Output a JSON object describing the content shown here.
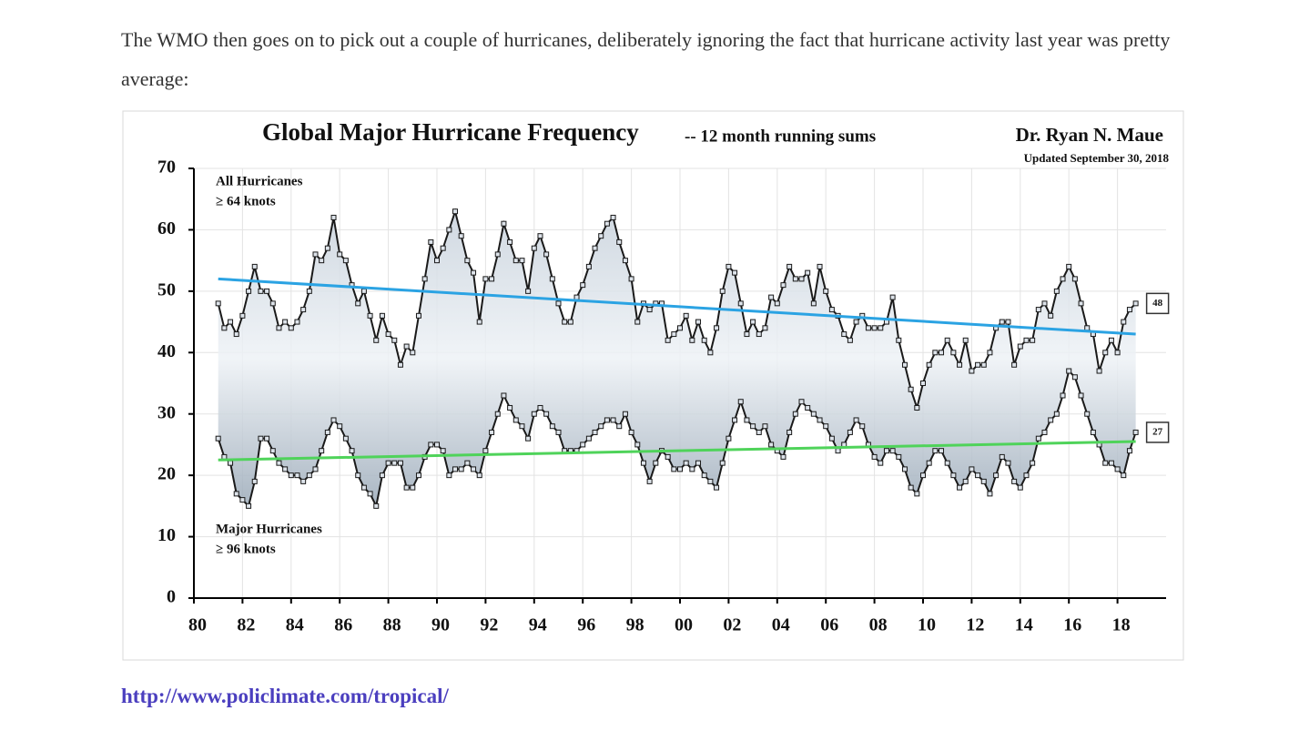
{
  "intro": "The WMO then goes on to pick out a couple of hurricanes, deliberately ignoring the fact that hurricane activity last year was pretty average:",
  "link": "http://www.policlimate.com/tropical/",
  "chart_data": {
    "type": "line",
    "title": "Global Major Hurricane Frequency",
    "subtitle": "-- 12 month running sums",
    "author": "Dr. Ryan N. Maue",
    "updated": "Updated September 30, 2018",
    "annotations": [
      "All Hurricanes",
      "≥ 64 knots",
      "Major Hurricanes",
      "≥ 96 knots"
    ],
    "xlim": [
      1980,
      2020
    ],
    "xticks": [
      {
        "value": 1980,
        "label": "80"
      },
      {
        "value": 1982,
        "label": "82"
      },
      {
        "value": 1984,
        "label": "84"
      },
      {
        "value": 1986,
        "label": "86"
      },
      {
        "value": 1988,
        "label": "88"
      },
      {
        "value": 1990,
        "label": "90"
      },
      {
        "value": 1992,
        "label": "92"
      },
      {
        "value": 1994,
        "label": "94"
      },
      {
        "value": 1996,
        "label": "96"
      },
      {
        "value": 1998,
        "label": "98"
      },
      {
        "value": 2000,
        "label": "00"
      },
      {
        "value": 2002,
        "label": "02"
      },
      {
        "value": 2004,
        "label": "04"
      },
      {
        "value": 2006,
        "label": "06"
      },
      {
        "value": 2008,
        "label": "08"
      },
      {
        "value": 2010,
        "label": "10"
      },
      {
        "value": 2012,
        "label": "12"
      },
      {
        "value": 2014,
        "label": "14"
      },
      {
        "value": 2016,
        "label": "16"
      },
      {
        "value": 2018,
        "label": "18"
      }
    ],
    "ylim": [
      0,
      70
    ],
    "yticks": [
      0,
      10,
      20,
      30,
      40,
      50,
      60,
      70
    ],
    "grid": true,
    "x": [
      1981,
      1981.25,
      1981.5,
      1981.75,
      1982,
      1982.25,
      1982.5,
      1982.75,
      1983,
      1983.25,
      1983.5,
      1983.75,
      1984,
      1984.25,
      1984.5,
      1984.75,
      1985,
      1985.25,
      1985.5,
      1985.75,
      1986,
      1986.25,
      1986.5,
      1986.75,
      1987,
      1987.25,
      1987.5,
      1987.75,
      1988,
      1988.25,
      1988.5,
      1988.75,
      1989,
      1989.25,
      1989.5,
      1989.75,
      1990,
      1990.25,
      1990.5,
      1990.75,
      1991,
      1991.25,
      1991.5,
      1991.75,
      1992,
      1992.25,
      1992.5,
      1992.75,
      1993,
      1993.25,
      1993.5,
      1993.75,
      1994,
      1994.25,
      1994.5,
      1994.75,
      1995,
      1995.25,
      1995.5,
      1995.75,
      1996,
      1996.25,
      1996.5,
      1996.75,
      1997,
      1997.25,
      1997.5,
      1997.75,
      1998,
      1998.25,
      1998.5,
      1998.75,
      1999,
      1999.25,
      1999.5,
      1999.75,
      2000,
      2000.25,
      2000.5,
      2000.75,
      2001,
      2001.25,
      2001.5,
      2001.75,
      2002,
      2002.25,
      2002.5,
      2002.75,
      2003,
      2003.25,
      2003.5,
      2003.75,
      2004,
      2004.25,
      2004.5,
      2004.75,
      2005,
      2005.25,
      2005.5,
      2005.75,
      2006,
      2006.25,
      2006.5,
      2006.75,
      2007,
      2007.25,
      2007.5,
      2007.75,
      2008,
      2008.25,
      2008.5,
      2008.75,
      2009,
      2009.25,
      2009.5,
      2009.75,
      2010,
      2010.25,
      2010.5,
      2010.75,
      2011,
      2011.25,
      2011.5,
      2011.75,
      2012,
      2012.25,
      2012.5,
      2012.75,
      2013,
      2013.25,
      2013.5,
      2013.75,
      2014,
      2014.25,
      2014.5,
      2014.75,
      2015,
      2015.25,
      2015.5,
      2015.75,
      2016,
      2016.25,
      2016.5,
      2016.75,
      2017,
      2017.25,
      2017.5,
      2017.75,
      2018,
      2018.25,
      2018.5,
      2018.75
    ],
    "series": [
      {
        "color": "#1a1a1a",
        "values": [
          48,
          44,
          45,
          43,
          46,
          50,
          54,
          50,
          50,
          48,
          44,
          45,
          44,
          45,
          47,
          50,
          56,
          55,
          57,
          62,
          56,
          55,
          51,
          48,
          50,
          46,
          42,
          46,
          43,
          42,
          38,
          41,
          40,
          46,
          52,
          58,
          55,
          57,
          60,
          63,
          59,
          55,
          53,
          45,
          52,
          52,
          56,
          61,
          58,
          55,
          55,
          50,
          57,
          59,
          56,
          52,
          48,
          45,
          45,
          49,
          51,
          54,
          57,
          59,
          61,
          62,
          58,
          55,
          52,
          45,
          48,
          47,
          48,
          48,
          42,
          43,
          44,
          46,
          42,
          45,
          42,
          40,
          44,
          50,
          54,
          53,
          48,
          43,
          45,
          43,
          44,
          49,
          48,
          51,
          54,
          52,
          52,
          53,
          48,
          54,
          50,
          47,
          46,
          43,
          42,
          45,
          46,
          44,
          44,
          44,
          45,
          49,
          42,
          38,
          34,
          31,
          35,
          38,
          40,
          40,
          42,
          40,
          38,
          42,
          37,
          38,
          38,
          40,
          44,
          45,
          45,
          38,
          41,
          42,
          42,
          47,
          48,
          46,
          50,
          52,
          54,
          52,
          48,
          44,
          43,
          37,
          40,
          42,
          40,
          45,
          47,
          48
        ]
      },
      {
        "color": "#1a1a1a",
        "values": [
          26,
          23,
          22,
          17,
          16,
          15,
          19,
          26,
          26,
          24,
          22,
          21,
          20,
          20,
          19,
          20,
          21,
          24,
          27,
          29,
          28,
          26,
          24,
          20,
          18,
          17,
          15,
          20,
          22,
          22,
          22,
          18,
          18,
          20,
          23,
          25,
          25,
          24,
          20,
          21,
          21,
          22,
          21,
          20,
          24,
          27,
          30,
          33,
          31,
          29,
          28,
          26,
          30,
          31,
          30,
          28,
          27,
          24,
          24,
          24,
          25,
          26,
          27,
          28,
          29,
          29,
          28,
          30,
          27,
          25,
          22,
          19,
          22,
          24,
          23,
          21,
          21,
          22,
          21,
          22,
          20,
          19,
          18,
          22,
          26,
          29,
          32,
          29,
          28,
          27,
          28,
          25,
          24,
          23,
          27,
          30,
          32,
          31,
          30,
          29,
          28,
          26,
          24,
          25,
          27,
          29,
          28,
          25,
          23,
          22,
          24,
          24,
          23,
          21,
          18,
          17,
          20,
          22,
          24,
          24,
          22,
          20,
          18,
          19,
          21,
          20,
          19,
          17,
          20,
          23,
          22,
          19,
          18,
          20,
          22,
          26,
          27,
          29,
          30,
          33,
          37,
          36,
          33,
          30,
          27,
          25,
          22,
          22,
          21,
          20,
          24,
          27
        ]
      }
    ],
    "trends": [
      {
        "color": "#2ba3e3",
        "x": [
          1981,
          2018.75
        ],
        "values": [
          52,
          43
        ]
      },
      {
        "color": "#4fd35a",
        "x": [
          1981,
          2018.75
        ],
        "values": [
          22.5,
          25.5
        ]
      }
    ]
  }
}
